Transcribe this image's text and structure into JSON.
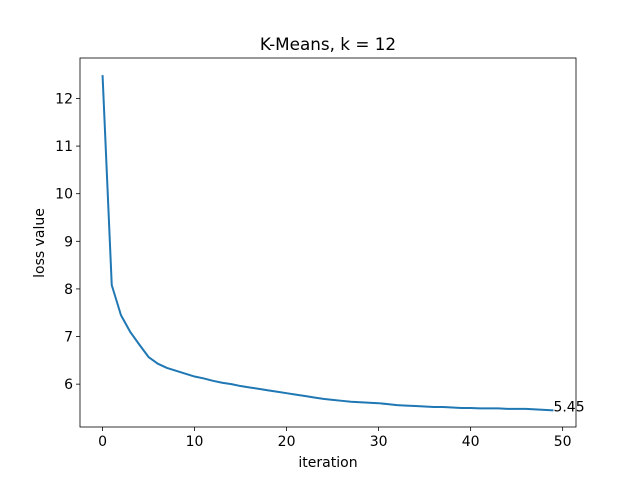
{
  "chart_data": {
    "type": "line",
    "title": "K-Means, k = 12",
    "xlabel": "iteration",
    "ylabel": "loss value",
    "xlim": [
      -2.45,
      51.45
    ],
    "ylim": [
      5.1,
      12.85
    ],
    "xticks": [
      0,
      10,
      20,
      30,
      40,
      50
    ],
    "yticks": [
      6,
      7,
      8,
      9,
      10,
      11,
      12
    ],
    "grid": false,
    "line_color": "#1f77b4",
    "series": [
      {
        "x": [
          0,
          1,
          2,
          3,
          4,
          5,
          6,
          7,
          8,
          9,
          10,
          11,
          12,
          13,
          14,
          15,
          16,
          17,
          18,
          19,
          20,
          21,
          22,
          23,
          24,
          25,
          26,
          27,
          28,
          29,
          30,
          31,
          32,
          33,
          34,
          35,
          36,
          37,
          38,
          39,
          40,
          41,
          42,
          43,
          44,
          45,
          46,
          47,
          48,
          49
        ],
        "values": [
          12.49,
          8.08,
          7.45,
          7.1,
          6.83,
          6.57,
          6.43,
          6.34,
          6.28,
          6.22,
          6.16,
          6.12,
          6.07,
          6.03,
          6.0,
          5.96,
          5.93,
          5.9,
          5.87,
          5.84,
          5.81,
          5.78,
          5.75,
          5.72,
          5.69,
          5.67,
          5.65,
          5.63,
          5.62,
          5.61,
          5.6,
          5.58,
          5.56,
          5.55,
          5.54,
          5.53,
          5.52,
          5.52,
          5.51,
          5.5,
          5.5,
          5.49,
          5.49,
          5.49,
          5.48,
          5.48,
          5.48,
          5.47,
          5.46,
          5.45
        ]
      }
    ],
    "annotations": [
      {
        "x": 49,
        "y": 5.45,
        "text": "5.45"
      }
    ]
  }
}
